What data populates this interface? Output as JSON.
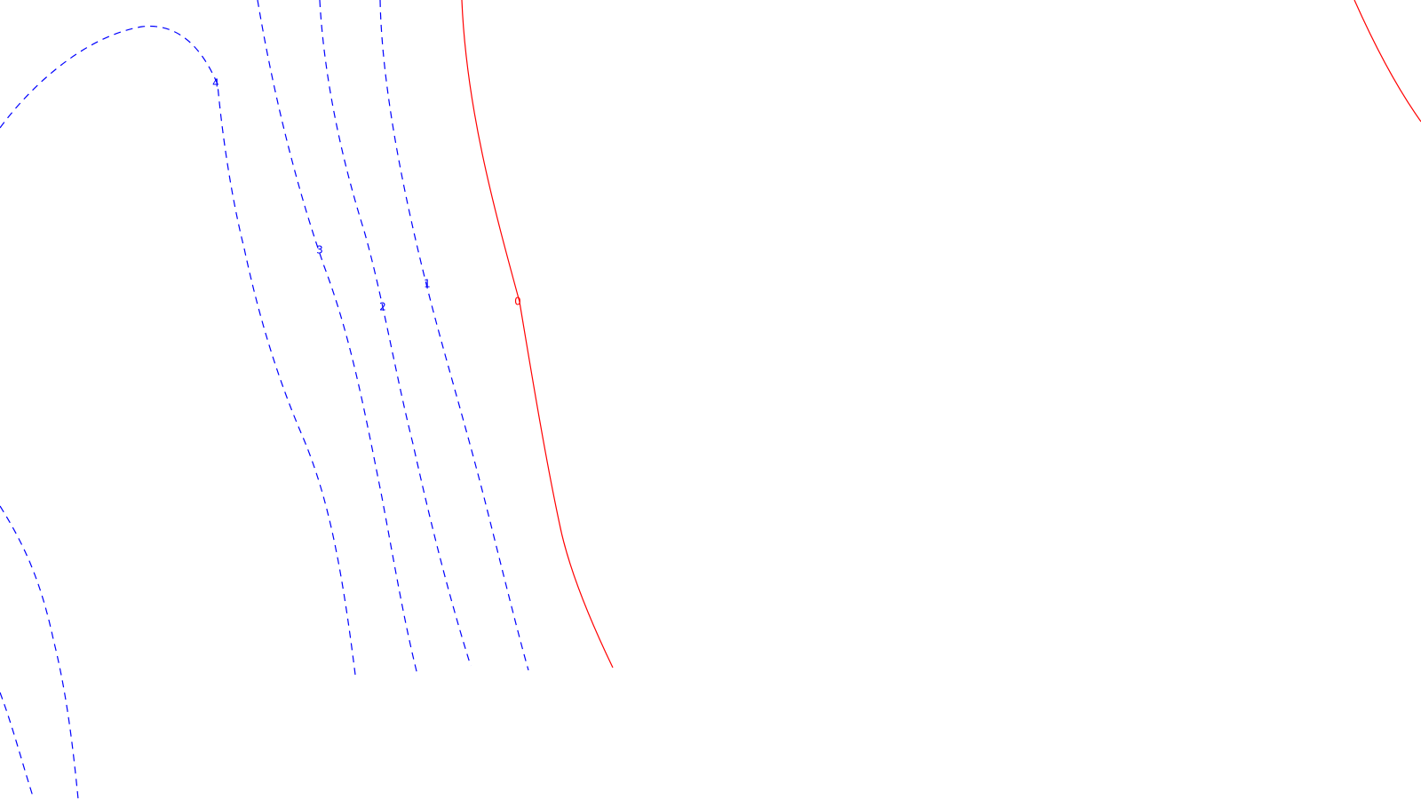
{
  "chart_data": {
    "type": "contour",
    "title": "",
    "xlabel": "",
    "ylabel": "",
    "grid": false,
    "legend": "none",
    "colors": {
      "positive": "#0000ff",
      "zero": "#ff0000"
    },
    "levels": [
      {
        "level": 4,
        "label": "4",
        "style": "dashed",
        "color": "#0000ff"
      },
      {
        "level": 3,
        "label": "3",
        "style": "dashed",
        "color": "#0000ff"
      },
      {
        "level": 2,
        "label": "2",
        "style": "dashed",
        "color": "#0000ff"
      },
      {
        "level": 1,
        "label": "1",
        "style": "dashed",
        "color": "#0000ff"
      },
      {
        "level": 0,
        "label": "0",
        "style": "solid",
        "color": "#ff0000"
      }
    ]
  }
}
